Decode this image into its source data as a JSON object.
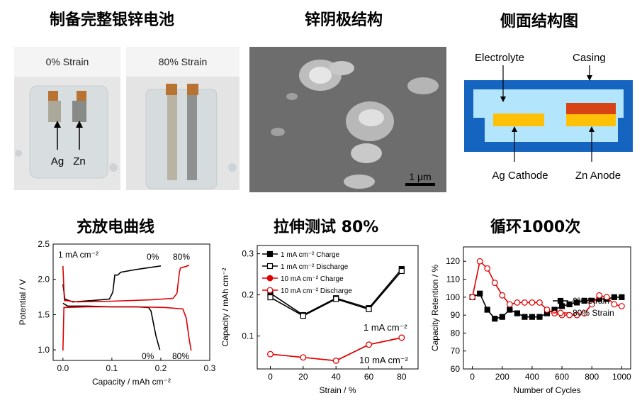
{
  "titles": {
    "battery": "制备完整银锌电池",
    "anode": "锌阴极结构",
    "side": "侧面结构图",
    "charge": "充放电曲线",
    "tensile": "拉伸测试 80%",
    "cycle": "循环1000次"
  },
  "photos": {
    "strain0_label": "0% Strain",
    "strain80_label": "80% Strain",
    "ag": "Ag",
    "zn": "Zn"
  },
  "sem": {
    "scale": "1 μm"
  },
  "side": {
    "electrolyte": "Electrolyte",
    "casing": "Casing",
    "cathode": "Ag Cathode",
    "anode": "Zn Anode",
    "colors": {
      "casing": "#1565c0",
      "electrolyte": "#b3e5fc",
      "cathode": "#ffc107",
      "anode_top": "#d84315"
    }
  },
  "chart_data": [
    {
      "type": "line",
      "id": "charge-discharge",
      "xlabel": "Capacity / mAh cm⁻²",
      "ylabel": "Potential / V",
      "xlim": [
        -0.02,
        0.3
      ],
      "ylim": [
        0.85,
        2.5
      ],
      "xticks": [
        "0.0",
        "0.1",
        "0.2",
        "0.3"
      ],
      "yticks": [
        "1.0",
        "1.5",
        "2.0",
        "2.5"
      ],
      "annotation": "1 mA cm⁻²",
      "series": [
        {
          "color": "#000000",
          "label_top": "0%",
          "label_bottom": "0%",
          "charge": [
            [
              0.0,
              1.93
            ],
            [
              0.004,
              1.72
            ],
            [
              0.02,
              1.68
            ],
            [
              0.06,
              1.7
            ],
            [
              0.095,
              1.72
            ],
            [
              0.102,
              1.82
            ],
            [
              0.106,
              2.06
            ],
            [
              0.112,
              2.06
            ],
            [
              0.118,
              2.1
            ],
            [
              0.15,
              2.14
            ],
            [
              0.19,
              2.18
            ],
            [
              0.2,
              2.19
            ]
          ],
          "discharge": [
            [
              0.0,
              1.66
            ],
            [
              0.01,
              1.62
            ],
            [
              0.05,
              1.62
            ],
            [
              0.1,
              1.61
            ],
            [
              0.15,
              1.61
            ],
            [
              0.175,
              1.6
            ],
            [
              0.18,
              1.55
            ],
            [
              0.19,
              1.2
            ],
            [
              0.198,
              1.0
            ]
          ]
        },
        {
          "color": "#e00000",
          "label_top": "80%",
          "label_bottom": "80%",
          "charge": [
            [
              0.0,
              2.19
            ],
            [
              0.003,
              1.7
            ],
            [
              0.03,
              1.68
            ],
            [
              0.1,
              1.69
            ],
            [
              0.18,
              1.71
            ],
            [
              0.225,
              1.73
            ],
            [
              0.233,
              1.8
            ],
            [
              0.238,
              2.1
            ],
            [
              0.24,
              2.16
            ],
            [
              0.25,
              2.18
            ],
            [
              0.258,
              2.2
            ]
          ],
          "discharge": [
            [
              0.0,
              0.99
            ],
            [
              0.002,
              1.6
            ],
            [
              0.05,
              1.61
            ],
            [
              0.15,
              1.61
            ],
            [
              0.21,
              1.6
            ],
            [
              0.245,
              1.58
            ],
            [
              0.252,
              1.45
            ],
            [
              0.258,
              1.15
            ],
            [
              0.262,
              0.99
            ]
          ]
        }
      ]
    },
    {
      "type": "line",
      "id": "tensile",
      "xlabel": "Strain / %",
      "ylabel": "Capacity / mAh cm⁻²",
      "x": [
        0,
        20,
        40,
        60,
        80
      ],
      "xlim": [
        -8,
        90
      ],
      "ylim": [
        0.02,
        0.32
      ],
      "xticks": [
        "0",
        "20",
        "40",
        "60",
        "80"
      ],
      "yticks": [
        "0.1",
        "0.2",
        "0.3"
      ],
      "annotation_1": "1 mA cm⁻²",
      "annotation_10": "10 mA cm⁻²",
      "series": [
        {
          "name": "1 mA cm⁻² Charge",
          "color": "#000000",
          "filled": true,
          "values": [
            0.204,
            0.151,
            0.192,
            0.168,
            0.263
          ]
        },
        {
          "name": "1 mA cm⁻² Discharge",
          "color": "#000000",
          "filled": false,
          "values": [
            0.194,
            0.149,
            0.19,
            0.165,
            0.258
          ]
        },
        {
          "name": "10 mA cm⁻² Charge",
          "color": "#e00000",
          "filled": true,
          "values": [
            0.056,
            0.048,
            0.04,
            0.079,
            0.096
          ]
        },
        {
          "name": "10 mA cm⁻² Discharge",
          "color": "#e00000",
          "filled": false,
          "values": [
            0.056,
            0.048,
            0.04,
            0.079,
            0.096
          ]
        }
      ]
    },
    {
      "type": "line",
      "id": "cycle",
      "xlabel": "Number of Cycles",
      "ylabel": "Capacity Retention / %",
      "xlim": [
        -60,
        1060
      ],
      "ylim": [
        60,
        128
      ],
      "xticks": [
        "0",
        "200",
        "400",
        "600",
        "800",
        "1000"
      ],
      "yticks": [
        "60",
        "70",
        "80",
        "90",
        "100",
        "110",
        "120"
      ],
      "series": [
        {
          "name": "0% Strain",
          "color": "#000000",
          "filled": true,
          "x": [
            0,
            50,
            100,
            150,
            200,
            250,
            300,
            350,
            400,
            450,
            500,
            550,
            600,
            650,
            700,
            750,
            800,
            850,
            900,
            950,
            1000
          ],
          "values": [
            100,
            102,
            93,
            88,
            89,
            93,
            91,
            89,
            89,
            89,
            91,
            93,
            95,
            96,
            97,
            98,
            98,
            99,
            99,
            100,
            100
          ]
        },
        {
          "name": "80% Strain",
          "color": "#e00000",
          "filled": false,
          "x": [
            0,
            50,
            100,
            150,
            200,
            250,
            300,
            350,
            400,
            450,
            500,
            550,
            600,
            650,
            700,
            750,
            800,
            850,
            900,
            950,
            1000
          ],
          "values": [
            100,
            120,
            116,
            108,
            101,
            96,
            97,
            97,
            97,
            97,
            93,
            91,
            90,
            90,
            90,
            91,
            96,
            101,
            100,
            96,
            95
          ]
        }
      ]
    }
  ]
}
